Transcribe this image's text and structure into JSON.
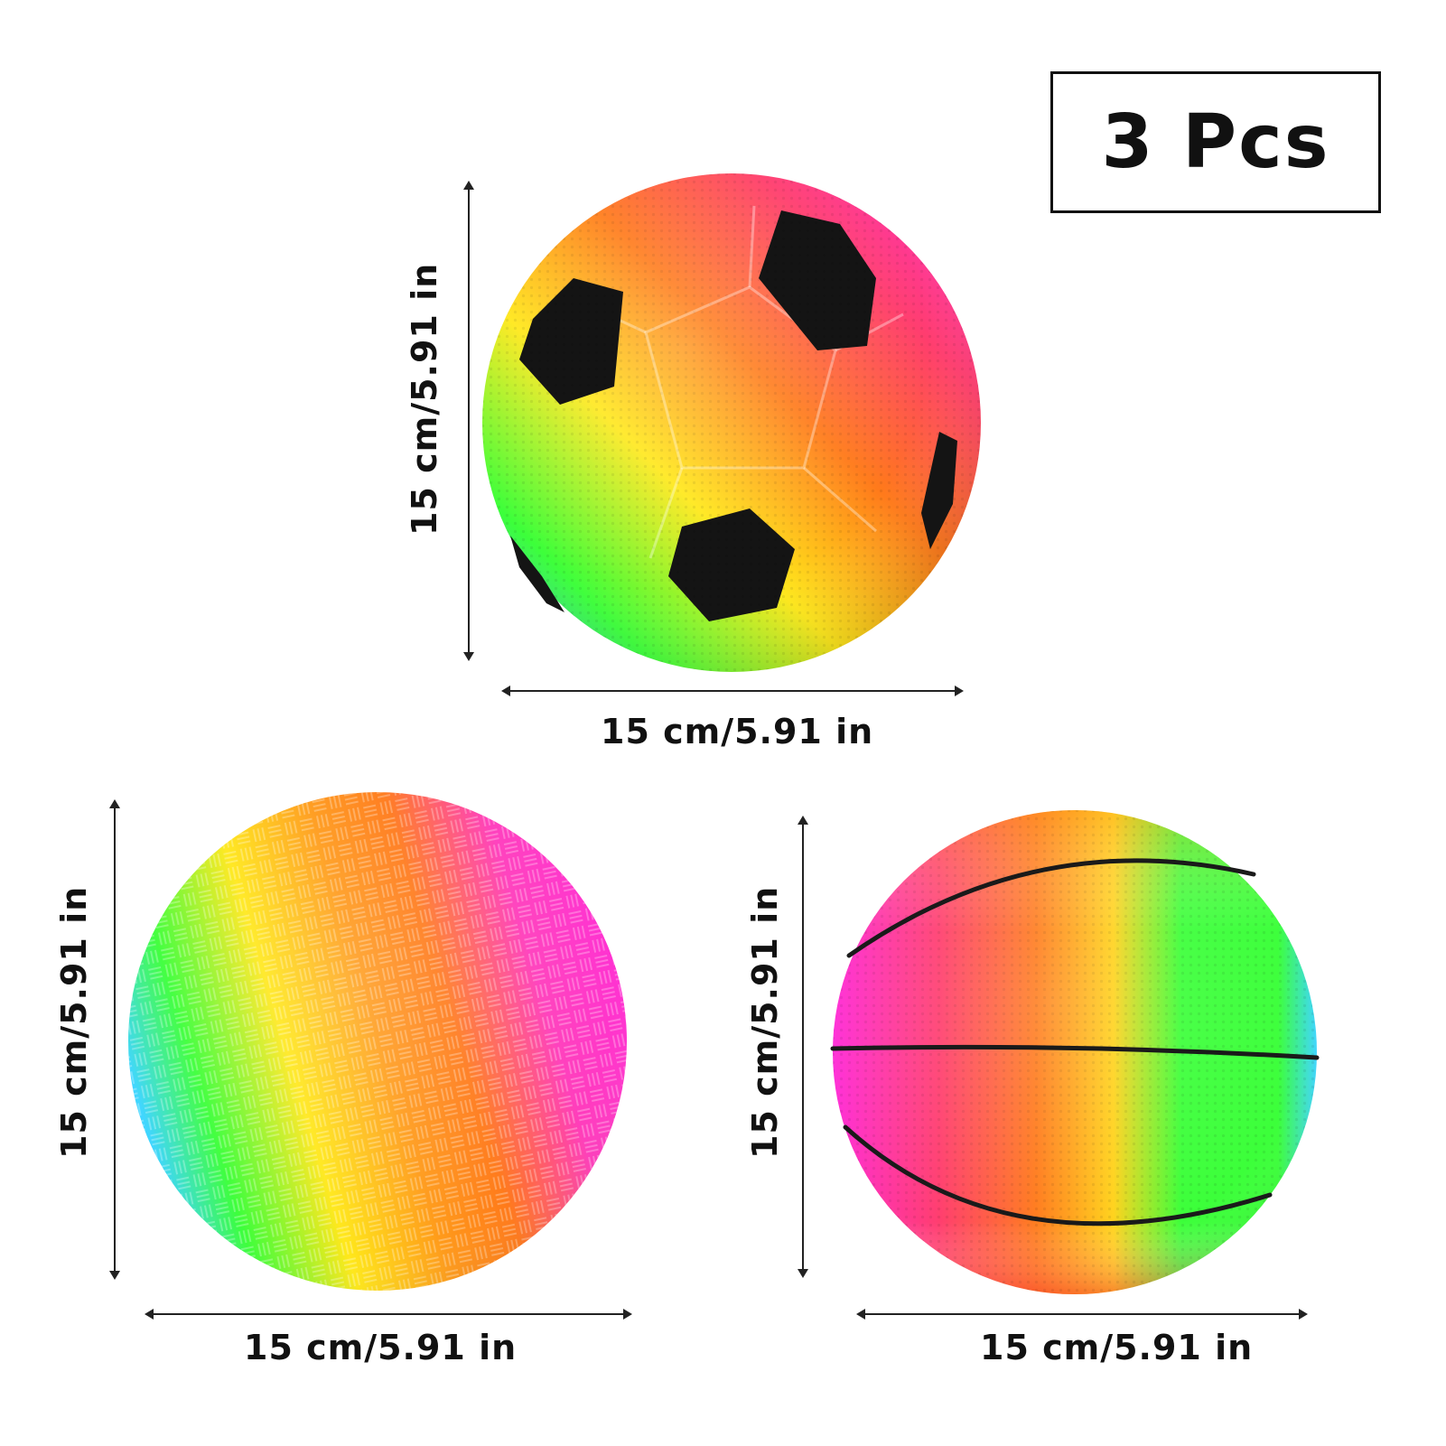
{
  "badge": {
    "text": "3 Pcs"
  },
  "balls": [
    {
      "type": "soccer-ball",
      "width_label": "15 cm/5.91 in",
      "height_label": "15 cm/5.91 in"
    },
    {
      "type": "playground-ball",
      "width_label": "15 cm/5.91 in",
      "height_label": "15 cm/5.91 in"
    },
    {
      "type": "basketball",
      "width_label": "15 cm/5.91 in",
      "height_label": "15 cm/5.91 in"
    }
  ],
  "colors": {
    "magenta": "#ff2fd8",
    "orange": "#ff7a1a",
    "yellow": "#ffe81a",
    "green": "#3cff3a",
    "cyan": "#3fd6ff",
    "patch": "#141414"
  }
}
